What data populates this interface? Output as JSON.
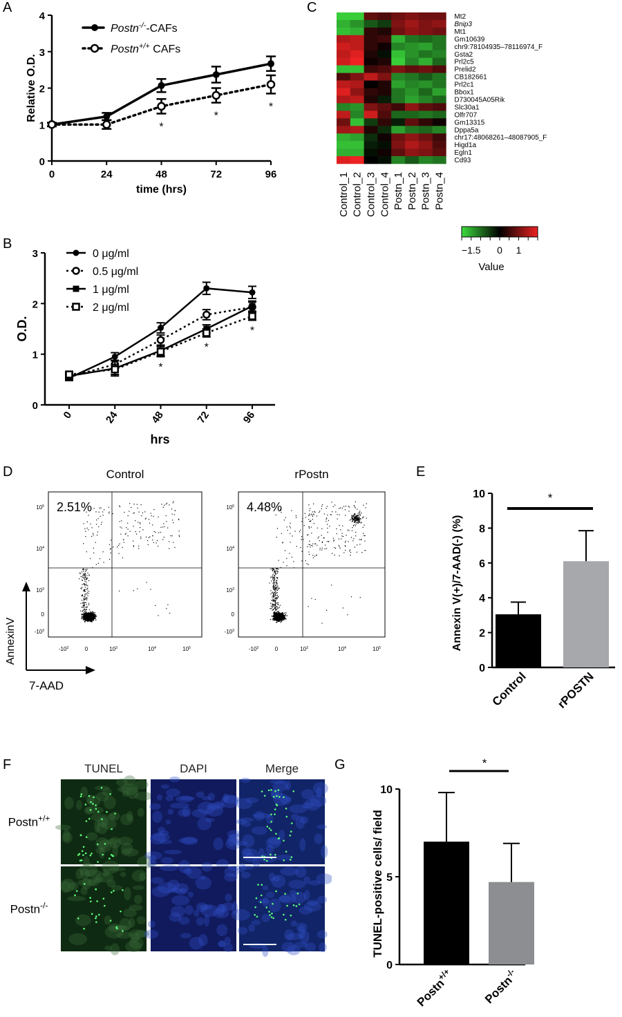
{
  "panels": {
    "A": "A",
    "B": "B",
    "C": "C",
    "D": "D",
    "E": "E",
    "F": "F",
    "G": "G"
  },
  "chart_data": [
    {
      "id": "A",
      "type": "line",
      "xlabel": "time (hrs)",
      "ylabel": "Relative O.D.",
      "x": [
        0,
        24,
        48,
        72,
        96
      ],
      "xlim": [
        0,
        96
      ],
      "ylim": [
        0,
        4
      ],
      "yticks": [
        0,
        1,
        2,
        3,
        4
      ],
      "series": [
        {
          "name": "Postn-/--CAFs",
          "legend_main": "Postn",
          "legend_sup": "-/-",
          "legend_suffix": "-CAFs",
          "style": "solid",
          "marker": "filled-circle",
          "values": [
            1.0,
            1.22,
            2.07,
            2.37,
            2.67
          ],
          "errors": [
            0.05,
            0.1,
            0.18,
            0.22,
            0.2
          ]
        },
        {
          "name": "Postn+/+ CAFs",
          "legend_main": "Postn",
          "legend_sup": "+/+",
          "legend_suffix": " CAFs",
          "style": "dotted",
          "marker": "open-circle",
          "values": [
            1.0,
            1.0,
            1.5,
            1.8,
            2.1
          ],
          "errors": [
            0.05,
            0.12,
            0.2,
            0.2,
            0.25
          ]
        }
      ],
      "significance": [
        {
          "x": 48,
          "label": "*"
        },
        {
          "x": 72,
          "label": "*"
        },
        {
          "x": 96,
          "label": "*"
        }
      ]
    },
    {
      "id": "B",
      "type": "line",
      "xlabel": "hrs",
      "ylabel": "O.D.",
      "x": [
        0,
        24,
        48,
        72,
        96
      ],
      "ylim": [
        0,
        3
      ],
      "yticks": [
        0,
        1,
        2,
        3
      ],
      "series": [
        {
          "name": "0 μg/ml",
          "style": "solid",
          "marker": "filled-circle",
          "values": [
            0.53,
            0.95,
            1.52,
            2.3,
            2.22
          ],
          "errors": [
            0.05,
            0.08,
            0.1,
            0.12,
            0.12
          ]
        },
        {
          "name": "0.5 μg/ml",
          "style": "dotted",
          "marker": "open-circle",
          "values": [
            0.55,
            0.8,
            1.28,
            1.78,
            1.93
          ],
          "errors": [
            0.05,
            0.08,
            0.1,
            0.1,
            0.1
          ]
        },
        {
          "name": "1 μg/ml",
          "style": "solid",
          "marker": "filled-square",
          "values": [
            0.57,
            0.72,
            1.07,
            1.5,
            1.95
          ],
          "errors": [
            0.05,
            0.15,
            0.1,
            0.08,
            0.1
          ]
        },
        {
          "name": "2 μg/ml",
          "style": "dotted",
          "marker": "open-square",
          "values": [
            0.6,
            0.7,
            1.05,
            1.42,
            1.75
          ],
          "errors": [
            0.05,
            0.1,
            0.1,
            0.08,
            0.08
          ]
        }
      ],
      "significance": [
        {
          "x": 48,
          "label": "*"
        },
        {
          "x": 72,
          "label": "*"
        },
        {
          "x": 96,
          "label": "*"
        }
      ]
    },
    {
      "id": "C",
      "type": "heatmap",
      "columns": [
        "Control_1",
        "Control_2",
        "Control_3",
        "Control_4",
        "Postn_1",
        "Postn_2",
        "Postn_3",
        "Postn_4"
      ],
      "rows": [
        "Mt2",
        "Bnip3",
        "Mt1",
        "Gm10639",
        "chr9:78104935–78116974_F",
        "Gsta2",
        "Prl2c5",
        "Prelid2",
        "CB182661",
        "Prl2c1",
        "Bbox1",
        "D730045A05Rik",
        "Slc30a1",
        "Olfr707",
        "Gm13315",
        "Dppa5a",
        "chr17:48068261–48087905_F",
        "Higd1a",
        "Egln1",
        "Cd93"
      ],
      "italic_rows": [
        "Bnip3"
      ],
      "values": [
        [
          -1.4,
          -1.4,
          0.6,
          0.5,
          0.7,
          0.8,
          0.7,
          0.7
        ],
        [
          -1.2,
          -1.0,
          -0.6,
          -0.4,
          0.8,
          1.0,
          0.8,
          0.9
        ],
        [
          -1.3,
          -1.2,
          0.3,
          0.2,
          0.7,
          0.9,
          0.8,
          0.7
        ],
        [
          1.1,
          1.2,
          0.3,
          0.4,
          -1.2,
          -0.8,
          -0.7,
          -0.8
        ],
        [
          1.3,
          1.2,
          0.3,
          0.1,
          -0.9,
          -1.0,
          -1.1,
          -0.8
        ],
        [
          1.2,
          1.4,
          0.2,
          -0.1,
          -1.3,
          -1.0,
          -0.8,
          -0.9
        ],
        [
          1.3,
          1.5,
          0.1,
          0.2,
          -1.4,
          -0.9,
          -1.2,
          -0.7
        ],
        [
          -1.3,
          -1.3,
          0.4,
          0.5,
          0.8,
          0.6,
          0.7,
          0.5
        ],
        [
          0.5,
          0.8,
          1.2,
          0.8,
          -0.9,
          -0.8,
          -0.6,
          -0.8
        ],
        [
          1.2,
          1.1,
          0.0,
          0.2,
          -1.1,
          -0.9,
          -1.0,
          -0.8
        ],
        [
          1.4,
          0.9,
          0.3,
          0.2,
          -0.8,
          -1.0,
          -0.7,
          -1.1
        ],
        [
          1.1,
          1.2,
          0.2,
          -0.2,
          -0.8,
          -1.1,
          -0.9,
          -0.7
        ],
        [
          -0.9,
          -1.0,
          0.8,
          0.6,
          0.4,
          0.9,
          0.6,
          0.5
        ],
        [
          1.2,
          -0.9,
          1.3,
          0.5,
          -0.7,
          -0.7,
          -0.8,
          -0.7
        ],
        [
          0.7,
          -1.3,
          -0.4,
          0.3,
          -0.2,
          0.6,
          0.3,
          0.1
        ],
        [
          1.0,
          1.1,
          0.2,
          -0.3,
          -1.1,
          -0.8,
          -0.7,
          -0.9
        ],
        [
          -1.2,
          -1.1,
          -0.3,
          0.1,
          0.7,
          0.9,
          0.7,
          0.4
        ],
        [
          -1.3,
          -1.3,
          -0.2,
          -0.1,
          0.8,
          1.1,
          0.9,
          0.5
        ],
        [
          -1.2,
          -1.2,
          -0.1,
          0.1,
          0.6,
          0.9,
          0.8,
          0.6
        ],
        [
          1.4,
          1.5,
          0.0,
          -0.1,
          -0.9,
          -0.6,
          -0.9,
          -0.8
        ]
      ],
      "colorbar": {
        "label": "Value",
        "ticks": [
          "−1.5",
          "0",
          "1"
        ],
        "tick_values": [
          -1.5,
          0,
          1
        ],
        "range": [
          -2,
          2
        ],
        "low_color": "#3ddc3d",
        "mid_color": "#000000",
        "high_color": "#ee2222"
      }
    },
    {
      "id": "D",
      "type": "scatter",
      "plots": [
        {
          "title": "Control",
          "percent": "2.51%"
        },
        {
          "title": "rPostn",
          "percent": "4.48%"
        }
      ],
      "y_ticks": [
        {
          "base": "10",
          "exp": "5"
        },
        {
          "base": "10",
          "exp": "4"
        },
        {
          "base": "10",
          "exp": "3"
        },
        {
          "base": "0",
          "exp": ""
        },
        {
          "base": "-10",
          "exp": "3"
        }
      ],
      "x_ticks": [
        {
          "base": "-10",
          "exp": "3"
        },
        {
          "base": "0",
          "exp": ""
        },
        {
          "base": "10",
          "exp": "3"
        },
        {
          "base": "10",
          "exp": "4"
        },
        {
          "base": "10",
          "exp": "5"
        }
      ],
      "y_axis_label": "AnnexinV",
      "x_axis_label": "7-AAD"
    },
    {
      "id": "E",
      "type": "bar",
      "categories": [
        "Control",
        "rPOSTN"
      ],
      "values": [
        3.05,
        6.1
      ],
      "errors": [
        0.7,
        1.75
      ],
      "colors": [
        "#000000",
        "#a6a8ac"
      ],
      "ylabel": "Annexin V(+)/7-AAD(-) (%)",
      "ylim": [
        0,
        10
      ],
      "yticks": [
        0,
        2,
        4,
        6,
        8,
        10
      ],
      "significance": "*"
    },
    {
      "id": "F",
      "type": "table",
      "columns": [
        "TUNEL",
        "DAPI",
        "Merge"
      ],
      "rows": [
        {
          "main": "Postn",
          "sup": "+/+"
        },
        {
          "main": "Postn",
          "sup": "-/-"
        }
      ]
    },
    {
      "id": "G",
      "type": "bar",
      "categories": [
        {
          "main": "Postn",
          "sup": "+/+"
        },
        {
          "main": "Postn",
          "sup": "-/-"
        }
      ],
      "values": [
        7.0,
        4.7
      ],
      "errors": [
        2.8,
        2.2
      ],
      "colors": [
        "#000000",
        "#8c8e91"
      ],
      "ylabel": "TUNEL-positive cells/ field",
      "ylim": [
        0,
        10
      ],
      "yticks": [
        0,
        5,
        10
      ],
      "significance": "*"
    }
  ]
}
